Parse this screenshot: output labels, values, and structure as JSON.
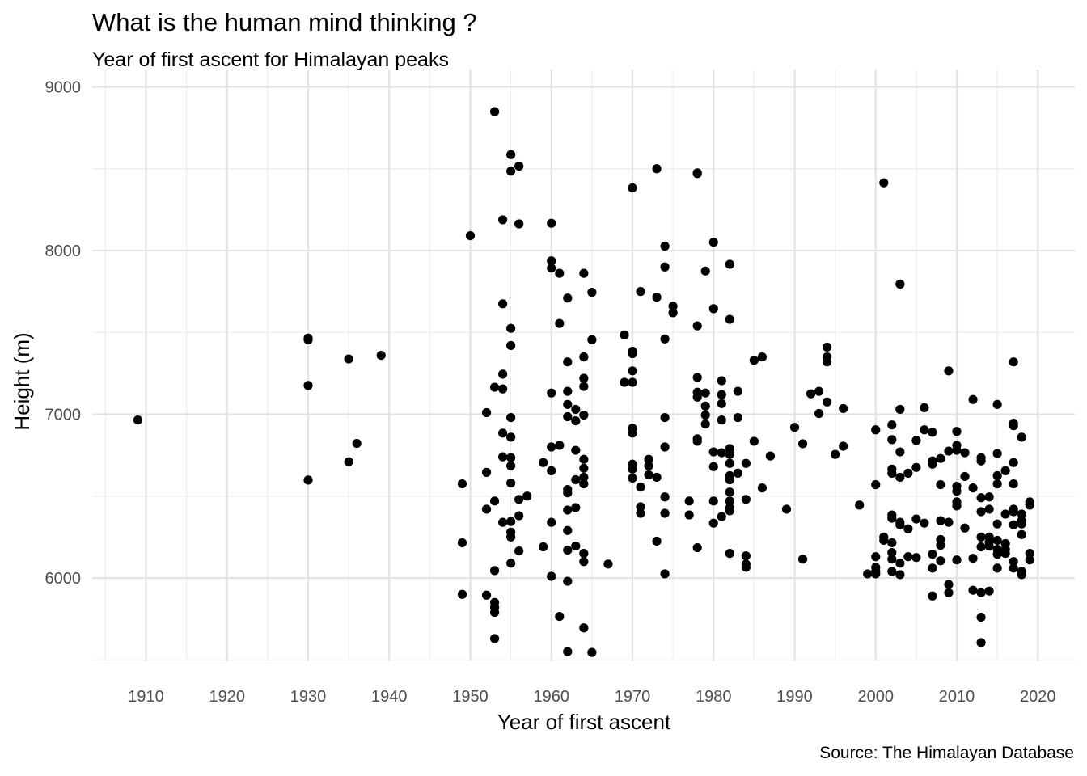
{
  "chart_data": {
    "type": "scatter",
    "title": "What is the human mind thinking ?",
    "subtitle": "Year of first ascent for Himalayan peaks",
    "caption": "Source: The Himalayan Database",
    "xlabel": "Year of first ascent",
    "ylabel": "Height (m)",
    "xlim": [
      1905,
      2024
    ],
    "ylim": [
      5500,
      9000
    ],
    "x_ticks": [
      "1910",
      "1920",
      "1930",
      "1940",
      "1950",
      "1960",
      "1970",
      "1980",
      "1990",
      "2000",
      "2010",
      "2020"
    ],
    "y_ticks": [
      "6000",
      "7000",
      "8000",
      "9000"
    ],
    "grid": true,
    "legend": "none",
    "point_color": "#000000",
    "points": [
      [
        1909,
        6965
      ],
      [
        1930,
        7455
      ],
      [
        1930,
        7465
      ],
      [
        1930,
        7176
      ],
      [
        1930,
        6598
      ],
      [
        1935,
        7338
      ],
      [
        1935,
        6710
      ],
      [
        1936,
        6822
      ],
      [
        1939,
        7360
      ],
      [
        1949,
        6575
      ],
      [
        1949,
        6215
      ],
      [
        1949,
        5900
      ],
      [
        1950,
        8091
      ],
      [
        1952,
        7010
      ],
      [
        1952,
        6645
      ],
      [
        1952,
        6420
      ],
      [
        1952,
        5895
      ],
      [
        1953,
        8849
      ],
      [
        1953,
        7165
      ],
      [
        1953,
        6470
      ],
      [
        1953,
        6045
      ],
      [
        1953,
        5850
      ],
      [
        1953,
        5820
      ],
      [
        1953,
        5790
      ],
      [
        1953,
        5630
      ],
      [
        1954,
        8188
      ],
      [
        1954,
        7675
      ],
      [
        1954,
        7245
      ],
      [
        1954,
        7155
      ],
      [
        1954,
        6885
      ],
      [
        1954,
        6740
      ],
      [
        1954,
        6340
      ],
      [
        1955,
        8586
      ],
      [
        1955,
        8485
      ],
      [
        1955,
        7525
      ],
      [
        1955,
        7420
      ],
      [
        1955,
        6980
      ],
      [
        1955,
        6860
      ],
      [
        1955,
        6735
      ],
      [
        1955,
        6685
      ],
      [
        1955,
        6580
      ],
      [
        1955,
        6345
      ],
      [
        1955,
        6280
      ],
      [
        1955,
        6250
      ],
      [
        1955,
        6090
      ],
      [
        1956,
        8516
      ],
      [
        1956,
        8163
      ],
      [
        1956,
        6480
      ],
      [
        1956,
        6380
      ],
      [
        1956,
        6165
      ],
      [
        1957,
        6500
      ],
      [
        1959,
        6705
      ],
      [
        1959,
        6190
      ],
      [
        1960,
        8167
      ],
      [
        1960,
        7937
      ],
      [
        1960,
        7893
      ],
      [
        1960,
        7130
      ],
      [
        1960,
        6800
      ],
      [
        1960,
        6655
      ],
      [
        1960,
        6340
      ],
      [
        1960,
        6010
      ],
      [
        1961,
        7861
      ],
      [
        1961,
        7555
      ],
      [
        1961,
        6810
      ],
      [
        1961,
        5765
      ],
      [
        1962,
        7710
      ],
      [
        1962,
        7320
      ],
      [
        1962,
        7140
      ],
      [
        1962,
        7060
      ],
      [
        1962,
        6985
      ],
      [
        1962,
        6540
      ],
      [
        1962,
        6520
      ],
      [
        1962,
        6415
      ],
      [
        1962,
        6290
      ],
      [
        1962,
        6170
      ],
      [
        1962,
        5980
      ],
      [
        1962,
        5550
      ],
      [
        1963,
        7030
      ],
      [
        1963,
        6960
      ],
      [
        1963,
        6780
      ],
      [
        1963,
        6600
      ],
      [
        1963,
        6430
      ],
      [
        1963,
        6195
      ],
      [
        1964,
        7861
      ],
      [
        1964,
        7350
      ],
      [
        1964,
        7220
      ],
      [
        1964,
        7170
      ],
      [
        1964,
        6995
      ],
      [
        1964,
        6725
      ],
      [
        1964,
        6670
      ],
      [
        1964,
        6615
      ],
      [
        1964,
        6575
      ],
      [
        1964,
        6150
      ],
      [
        1964,
        6100
      ],
      [
        1964,
        5695
      ],
      [
        1965,
        7745
      ],
      [
        1965,
        7455
      ],
      [
        1965,
        5545
      ],
      [
        1967,
        6085
      ],
      [
        1969,
        7485
      ],
      [
        1969,
        7195
      ],
      [
        1970,
        8383
      ],
      [
        1970,
        7385
      ],
      [
        1970,
        7370
      ],
      [
        1970,
        7265
      ],
      [
        1970,
        7195
      ],
      [
        1970,
        6915
      ],
      [
        1970,
        6885
      ],
      [
        1970,
        6695
      ],
      [
        1970,
        6665
      ],
      [
        1970,
        6610
      ],
      [
        1971,
        7750
      ],
      [
        1971,
        6555
      ],
      [
        1971,
        6435
      ],
      [
        1971,
        6395
      ],
      [
        1972,
        6725
      ],
      [
        1972,
        6685
      ],
      [
        1972,
        6630
      ],
      [
        1973,
        8500
      ],
      [
        1973,
        7715
      ],
      [
        1973,
        6615
      ],
      [
        1973,
        6225
      ],
      [
        1974,
        8027
      ],
      [
        1974,
        7900
      ],
      [
        1974,
        7460
      ],
      [
        1974,
        6980
      ],
      [
        1974,
        6800
      ],
      [
        1974,
        6495
      ],
      [
        1974,
        6395
      ],
      [
        1974,
        6025
      ],
      [
        1975,
        7660
      ],
      [
        1975,
        7620
      ],
      [
        1977,
        6470
      ],
      [
        1977,
        6385
      ],
      [
        1978,
        8475
      ],
      [
        1978,
        8470
      ],
      [
        1978,
        7540
      ],
      [
        1978,
        7225
      ],
      [
        1978,
        7135
      ],
      [
        1978,
        7105
      ],
      [
        1978,
        6850
      ],
      [
        1978,
        6835
      ],
      [
        1978,
        6185
      ],
      [
        1979,
        7875
      ],
      [
        1979,
        7130
      ],
      [
        1979,
        7050
      ],
      [
        1979,
        6995
      ],
      [
        1979,
        6940
      ],
      [
        1980,
        8051
      ],
      [
        1980,
        7645
      ],
      [
        1980,
        6770
      ],
      [
        1980,
        6680
      ],
      [
        1980,
        6470
      ],
      [
        1980,
        6335
      ],
      [
        1981,
        7205
      ],
      [
        1981,
        7120
      ],
      [
        1981,
        7065
      ],
      [
        1981,
        6965
      ],
      [
        1981,
        6765
      ],
      [
        1981,
        6375
      ],
      [
        1982,
        7916
      ],
      [
        1982,
        7580
      ],
      [
        1982,
        6790
      ],
      [
        1982,
        6755
      ],
      [
        1982,
        6700
      ],
      [
        1982,
        6625
      ],
      [
        1982,
        6600
      ],
      [
        1982,
        6525
      ],
      [
        1982,
        6470
      ],
      [
        1982,
        6430
      ],
      [
        1982,
        6410
      ],
      [
        1982,
        6150
      ],
      [
        1983,
        7140
      ],
      [
        1983,
        6980
      ],
      [
        1983,
        6640
      ],
      [
        1984,
        6700
      ],
      [
        1984,
        6480
      ],
      [
        1984,
        6135
      ],
      [
        1984,
        6085
      ],
      [
        1984,
        6065
      ],
      [
        1985,
        7330
      ],
      [
        1985,
        6835
      ],
      [
        1986,
        7350
      ],
      [
        1986,
        6550
      ],
      [
        1987,
        6745
      ],
      [
        1989,
        6420
      ],
      [
        1990,
        6920
      ],
      [
        1991,
        6820
      ],
      [
        1991,
        6115
      ],
      [
        1992,
        7125
      ],
      [
        1993,
        7140
      ],
      [
        1993,
        7005
      ],
      [
        1994,
        7410
      ],
      [
        1994,
        7350
      ],
      [
        1994,
        7320
      ],
      [
        1994,
        7075
      ],
      [
        1995,
        6755
      ],
      [
        1996,
        7035
      ],
      [
        1996,
        6805
      ],
      [
        1998,
        6445
      ],
      [
        1999,
        6025
      ],
      [
        2000,
        6905
      ],
      [
        2000,
        6570
      ],
      [
        2000,
        6130
      ],
      [
        2000,
        6065
      ],
      [
        2000,
        6040
      ],
      [
        2000,
        6025
      ],
      [
        2001,
        8414
      ],
      [
        2001,
        6250
      ],
      [
        2001,
        6230
      ],
      [
        2002,
        6935
      ],
      [
        2002,
        6845
      ],
      [
        2002,
        6665
      ],
      [
        2002,
        6640
      ],
      [
        2002,
        6385
      ],
      [
        2002,
        6365
      ],
      [
        2002,
        6215
      ],
      [
        2002,
        6155
      ],
      [
        2002,
        6115
      ],
      [
        2002,
        6040
      ],
      [
        2003,
        7795
      ],
      [
        2003,
        7030
      ],
      [
        2003,
        6770
      ],
      [
        2003,
        6615
      ],
      [
        2003,
        6340
      ],
      [
        2003,
        6325
      ],
      [
        2003,
        6090
      ],
      [
        2003,
        6020
      ],
      [
        2004,
        6640
      ],
      [
        2004,
        6300
      ],
      [
        2004,
        6130
      ],
      [
        2005,
        6840
      ],
      [
        2005,
        6675
      ],
      [
        2005,
        6360
      ],
      [
        2005,
        6125
      ],
      [
        2006,
        7040
      ],
      [
        2006,
        6905
      ],
      [
        2006,
        6335
      ],
      [
        2007,
        6890
      ],
      [
        2007,
        6715
      ],
      [
        2007,
        6695
      ],
      [
        2007,
        6145
      ],
      [
        2007,
        6060
      ],
      [
        2007,
        5890
      ],
      [
        2008,
        6730
      ],
      [
        2008,
        6570
      ],
      [
        2008,
        6350
      ],
      [
        2008,
        6235
      ],
      [
        2008,
        6200
      ],
      [
        2008,
        6105
      ],
      [
        2009,
        7265
      ],
      [
        2009,
        6775
      ],
      [
        2009,
        6340
      ],
      [
        2009,
        5960
      ],
      [
        2009,
        5910
      ],
      [
        2010,
        6895
      ],
      [
        2010,
        6810
      ],
      [
        2010,
        6780
      ],
      [
        2010,
        6560
      ],
      [
        2010,
        6530
      ],
      [
        2010,
        6465
      ],
      [
        2010,
        6440
      ],
      [
        2010,
        6110
      ],
      [
        2011,
        6765
      ],
      [
        2011,
        6620
      ],
      [
        2011,
        6305
      ],
      [
        2012,
        7090
      ],
      [
        2012,
        6550
      ],
      [
        2012,
        6120
      ],
      [
        2012,
        5925
      ],
      [
        2013,
        6735
      ],
      [
        2013,
        6715
      ],
      [
        2013,
        6490
      ],
      [
        2013,
        6405
      ],
      [
        2013,
        6250
      ],
      [
        2013,
        6190
      ],
      [
        2013,
        5910
      ],
      [
        2013,
        5760
      ],
      [
        2013,
        5605
      ],
      [
        2014,
        6495
      ],
      [
        2014,
        6420
      ],
      [
        2014,
        6250
      ],
      [
        2014,
        6220
      ],
      [
        2014,
        6195
      ],
      [
        2014,
        5920
      ],
      [
        2015,
        7060
      ],
      [
        2015,
        6760
      ],
      [
        2015,
        6625
      ],
      [
        2015,
        6575
      ],
      [
        2015,
        6330
      ],
      [
        2015,
        6230
      ],
      [
        2015,
        6175
      ],
      [
        2015,
        6145
      ],
      [
        2015,
        6060
      ],
      [
        2016,
        6655
      ],
      [
        2016,
        6390
      ],
      [
        2016,
        6210
      ],
      [
        2016,
        6175
      ],
      [
        2016,
        6150
      ],
      [
        2017,
        7320
      ],
      [
        2017,
        6945
      ],
      [
        2017,
        6930
      ],
      [
        2017,
        6705
      ],
      [
        2017,
        6575
      ],
      [
        2017,
        6420
      ],
      [
        2017,
        6405
      ],
      [
        2017,
        6325
      ],
      [
        2017,
        6100
      ],
      [
        2017,
        6060
      ],
      [
        2018,
        6860
      ],
      [
        2018,
        6390
      ],
      [
        2018,
        6350
      ],
      [
        2018,
        6330
      ],
      [
        2018,
        6265
      ],
      [
        2018,
        6040
      ],
      [
        2018,
        6020
      ],
      [
        2019,
        6465
      ],
      [
        2019,
        6445
      ],
      [
        2019,
        6150
      ],
      [
        2019,
        6110
      ]
    ]
  }
}
